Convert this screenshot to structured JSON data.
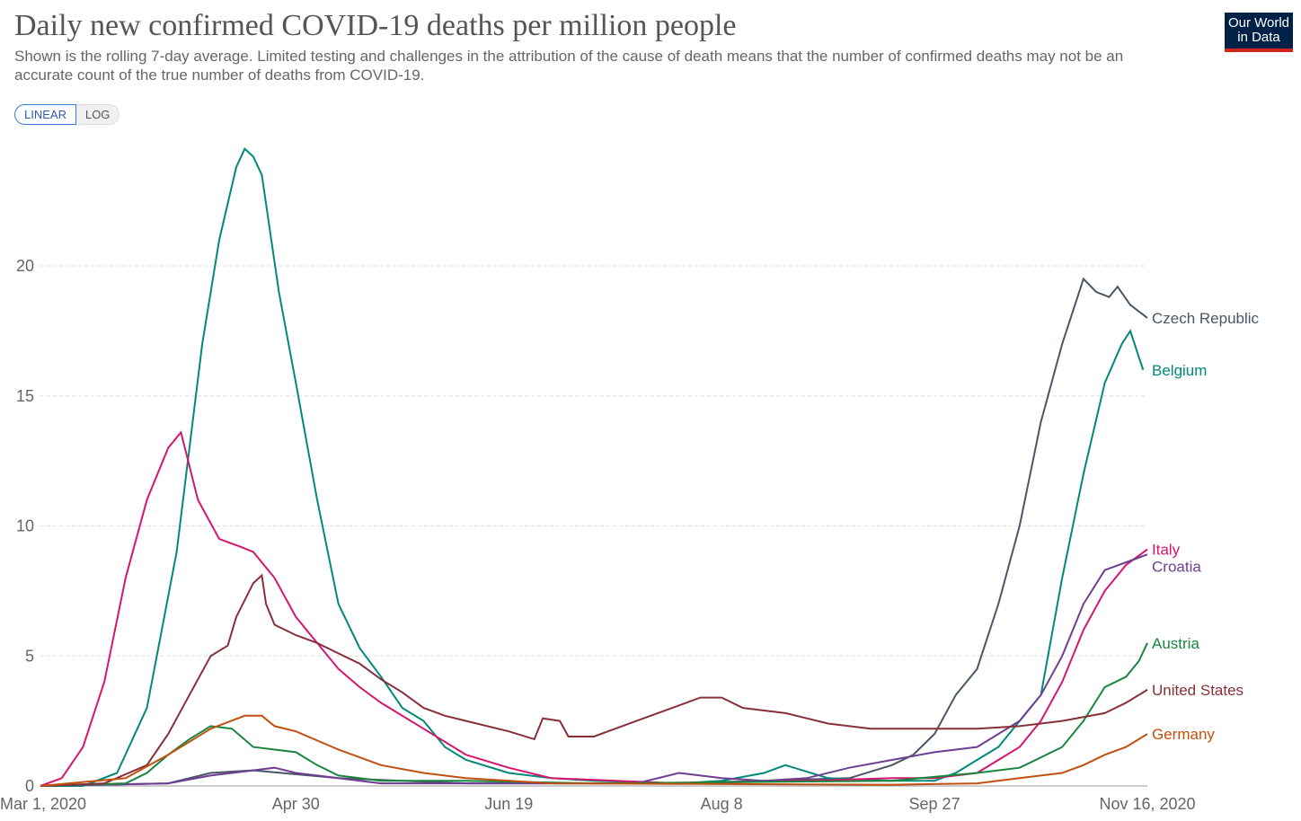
{
  "header": {
    "title": "Daily new confirmed COVID-19 deaths per million people",
    "subtitle": "Shown is the rolling 7-day average. Limited testing and challenges in the attribution of the cause of death means that the number of confirmed deaths may not be an accurate count of the true number of deaths from COVID-19.",
    "logo": "Our World in Data",
    "scale_linear": "LINEAR",
    "scale_log": "LOG"
  },
  "chart_data": {
    "type": "line",
    "title": "Daily new confirmed COVID-19 deaths per million people",
    "x_unit": "days since Mar 1, 2020",
    "xlim": [
      0,
      260
    ],
    "ylim": [
      0,
      25
    ],
    "x_ticks": [
      {
        "day": 0,
        "label": "Mar 1, 2020"
      },
      {
        "day": 60,
        "label": "Apr 30"
      },
      {
        "day": 110,
        "label": "Jun 19"
      },
      {
        "day": 160,
        "label": "Aug 8"
      },
      {
        "day": 210,
        "label": "Sep 27"
      },
      {
        "day": 260,
        "label": "Nov 16, 2020"
      }
    ],
    "y_ticks": [
      0,
      5,
      10,
      15,
      20
    ],
    "grid": true,
    "legend": "right-end labels",
    "series": [
      {
        "name": "Czech Republic",
        "color": "#4a5568",
        "points": [
          [
            0,
            0
          ],
          [
            30,
            0.1
          ],
          [
            40,
            0.5
          ],
          [
            50,
            0.6
          ],
          [
            70,
            0.3
          ],
          [
            100,
            0.1
          ],
          [
            150,
            0.1
          ],
          [
            190,
            0.3
          ],
          [
            200,
            0.8
          ],
          [
            205,
            1.2
          ],
          [
            210,
            2
          ],
          [
            215,
            3.5
          ],
          [
            220,
            4.5
          ],
          [
            225,
            7
          ],
          [
            230,
            10
          ],
          [
            235,
            14
          ],
          [
            240,
            17
          ],
          [
            245,
            19.5
          ],
          [
            248,
            19
          ],
          [
            251,
            18.8
          ],
          [
            253,
            19.2
          ],
          [
            256,
            18.5
          ],
          [
            260,
            18
          ]
        ]
      },
      {
        "name": "Belgium",
        "color": "#00897b",
        "points": [
          [
            0,
            0
          ],
          [
            10,
            0
          ],
          [
            18,
            0.5
          ],
          [
            25,
            3
          ],
          [
            32,
            9
          ],
          [
            38,
            17
          ],
          [
            42,
            21
          ],
          [
            46,
            23.8
          ],
          [
            48,
            24.5
          ],
          [
            50,
            24.2
          ],
          [
            52,
            23.5
          ],
          [
            56,
            19
          ],
          [
            60,
            15.5
          ],
          [
            65,
            11
          ],
          [
            70,
            7
          ],
          [
            75,
            5.3
          ],
          [
            80,
            4.2
          ],
          [
            85,
            3
          ],
          [
            90,
            2.5
          ],
          [
            95,
            1.5
          ],
          [
            100,
            1
          ],
          [
            110,
            0.5
          ],
          [
            120,
            0.3
          ],
          [
            130,
            0.2
          ],
          [
            150,
            0.1
          ],
          [
            160,
            0.2
          ],
          [
            170,
            0.5
          ],
          [
            175,
            0.8
          ],
          [
            185,
            0.3
          ],
          [
            200,
            0.2
          ],
          [
            210,
            0.2
          ],
          [
            215,
            0.5
          ],
          [
            220,
            1
          ],
          [
            225,
            1.5
          ],
          [
            230,
            2.5
          ],
          [
            235,
            3.5
          ],
          [
            240,
            8
          ],
          [
            245,
            12
          ],
          [
            250,
            15.5
          ],
          [
            254,
            17
          ],
          [
            256,
            17.5
          ],
          [
            258,
            16.5
          ],
          [
            259,
            16
          ]
        ]
      },
      {
        "name": "Italy",
        "color": "#d6156e",
        "points": [
          [
            0,
            0
          ],
          [
            5,
            0.3
          ],
          [
            10,
            1.5
          ],
          [
            15,
            4
          ],
          [
            20,
            8
          ],
          [
            25,
            11
          ],
          [
            30,
            13
          ],
          [
            33,
            13.6
          ],
          [
            37,
            11
          ],
          [
            42,
            9.5
          ],
          [
            47,
            9.2
          ],
          [
            50,
            9
          ],
          [
            55,
            8
          ],
          [
            60,
            6.5
          ],
          [
            65,
            5.5
          ],
          [
            70,
            4.5
          ],
          [
            75,
            3.8
          ],
          [
            80,
            3.2
          ],
          [
            90,
            2.2
          ],
          [
            100,
            1.2
          ],
          [
            110,
            0.7
          ],
          [
            120,
            0.3
          ],
          [
            150,
            0.1
          ],
          [
            180,
            0.2
          ],
          [
            200,
            0.3
          ],
          [
            210,
            0.3
          ],
          [
            220,
            0.5
          ],
          [
            225,
            1
          ],
          [
            230,
            1.5
          ],
          [
            235,
            2.5
          ],
          [
            240,
            4
          ],
          [
            245,
            6
          ],
          [
            250,
            7.5
          ],
          [
            255,
            8.5
          ],
          [
            260,
            9.1
          ]
        ]
      },
      {
        "name": "Croatia",
        "color": "#6d3e91",
        "points": [
          [
            0,
            0
          ],
          [
            30,
            0.1
          ],
          [
            40,
            0.4
          ],
          [
            45,
            0.5
          ],
          [
            55,
            0.7
          ],
          [
            60,
            0.5
          ],
          [
            70,
            0.3
          ],
          [
            80,
            0.1
          ],
          [
            140,
            0.1
          ],
          [
            150,
            0.5
          ],
          [
            160,
            0.3
          ],
          [
            170,
            0.2
          ],
          [
            180,
            0.3
          ],
          [
            190,
            0.7
          ],
          [
            200,
            1
          ],
          [
            210,
            1.3
          ],
          [
            220,
            1.5
          ],
          [
            230,
            2.5
          ],
          [
            235,
            3.5
          ],
          [
            240,
            5
          ],
          [
            245,
            7
          ],
          [
            250,
            8.3
          ],
          [
            255,
            8.6
          ],
          [
            260,
            8.9
          ]
        ]
      },
      {
        "name": "Austria",
        "color": "#18853d",
        "points": [
          [
            0,
            0
          ],
          [
            20,
            0.1
          ],
          [
            25,
            0.5
          ],
          [
            30,
            1.2
          ],
          [
            35,
            1.8
          ],
          [
            40,
            2.3
          ],
          [
            45,
            2.2
          ],
          [
            50,
            1.5
          ],
          [
            55,
            1.4
          ],
          [
            60,
            1.3
          ],
          [
            65,
            0.8
          ],
          [
            70,
            0.4
          ],
          [
            80,
            0.2
          ],
          [
            100,
            0.2
          ],
          [
            130,
            0.1
          ],
          [
            200,
            0.2
          ],
          [
            220,
            0.5
          ],
          [
            230,
            0.7
          ],
          [
            240,
            1.5
          ],
          [
            245,
            2.5
          ],
          [
            250,
            3.8
          ],
          [
            255,
            4.2
          ],
          [
            258,
            4.8
          ],
          [
            260,
            5.5
          ]
        ]
      },
      {
        "name": "United States",
        "color": "#883039",
        "points": [
          [
            0,
            0
          ],
          [
            15,
            0.1
          ],
          [
            25,
            0.8
          ],
          [
            30,
            2
          ],
          [
            35,
            3.5
          ],
          [
            40,
            5
          ],
          [
            44,
            5.4
          ],
          [
            46,
            6.5
          ],
          [
            50,
            7.8
          ],
          [
            52,
            8.1
          ],
          [
            53,
            7
          ],
          [
            55,
            6.2
          ],
          [
            60,
            5.8
          ],
          [
            65,
            5.5
          ],
          [
            70,
            5.1
          ],
          [
            75,
            4.7
          ],
          [
            80,
            4.1
          ],
          [
            85,
            3.6
          ],
          [
            90,
            3
          ],
          [
            95,
            2.7
          ],
          [
            100,
            2.5
          ],
          [
            110,
            2.1
          ],
          [
            116,
            1.8
          ],
          [
            118,
            2.6
          ],
          [
            122,
            2.5
          ],
          [
            124,
            1.9
          ],
          [
            130,
            1.9
          ],
          [
            140,
            2.5
          ],
          [
            150,
            3.1
          ],
          [
            155,
            3.4
          ],
          [
            160,
            3.4
          ],
          [
            165,
            3
          ],
          [
            175,
            2.8
          ],
          [
            185,
            2.4
          ],
          [
            195,
            2.2
          ],
          [
            210,
            2.2
          ],
          [
            220,
            2.2
          ],
          [
            230,
            2.3
          ],
          [
            240,
            2.5
          ],
          [
            250,
            2.8
          ],
          [
            255,
            3.2
          ],
          [
            260,
            3.7
          ]
        ]
      },
      {
        "name": "Germany",
        "color": "#c15010",
        "points": [
          [
            0,
            0
          ],
          [
            20,
            0.3
          ],
          [
            30,
            1.2
          ],
          [
            40,
            2.2
          ],
          [
            48,
            2.7
          ],
          [
            52,
            2.7
          ],
          [
            55,
            2.3
          ],
          [
            60,
            2.1
          ],
          [
            70,
            1.4
          ],
          [
            80,
            0.8
          ],
          [
            90,
            0.5
          ],
          [
            100,
            0.3
          ],
          [
            120,
            0.1
          ],
          [
            200,
            0.05
          ],
          [
            220,
            0.1
          ],
          [
            230,
            0.3
          ],
          [
            240,
            0.5
          ],
          [
            245,
            0.8
          ],
          [
            250,
            1.2
          ],
          [
            255,
            1.5
          ],
          [
            260,
            2
          ]
        ]
      }
    ]
  }
}
